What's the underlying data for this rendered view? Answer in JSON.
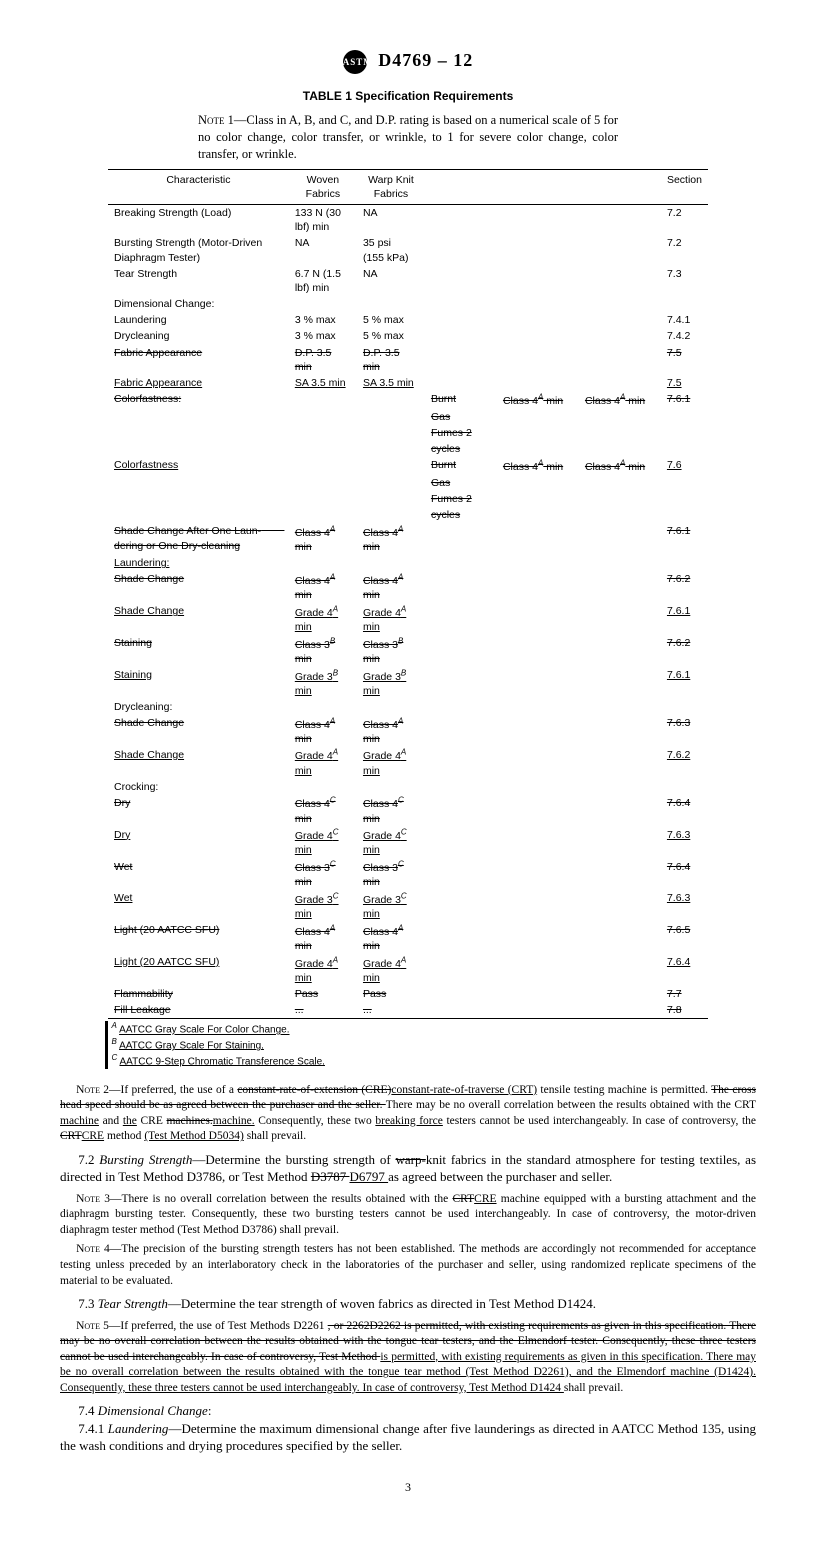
{
  "header": {
    "std_no": "D4769 – 12"
  },
  "table": {
    "title": "TABLE 1  Specification Requirements",
    "note_label": "Note",
    "note_num": "1",
    "note_text": "—Class in A, B, and C, and D.P. rating is based on a numerical scale of 5 for no color change, color transfer, or wrinkle, to 1 for severe color change, color transfer, or wrinkle.",
    "headers": {
      "c1": "Characteristic",
      "c2": "Woven Fabrics",
      "c3": "Warp Knit Fabrics",
      "c4": "Section"
    },
    "rows": [
      {
        "c": "Breaking Strength (Load)",
        "w": "133 N (30 lbf) min",
        "k": "NA",
        "s": "7.2"
      },
      {
        "c": "Bursting Strength (Motor-Driven Diaphragm Tester)",
        "w": "NA",
        "k": "35 psi\n(155 kPa)",
        "s": "7.2"
      },
      {
        "c": "Tear Strength",
        "w": "6.7 N (1.5 lbf) min",
        "k": "NA",
        "s": "7.3"
      },
      {
        "c": "Dimensional Change:"
      },
      {
        "c": "Laundering",
        "ind": 1,
        "w": "3 % max",
        "k": "5 % max",
        "s": "7.4.1"
      },
      {
        "c": "Drycleaning",
        "ind": 1,
        "w": "3 % max",
        "k": "5 % max",
        "s": "7.4.2"
      },
      {
        "c": "Fabric Appearance",
        "cs": true,
        "w": "D.P. 3.5 min",
        "ws": true,
        "k": "D.P. 3.5 min",
        "ks": true,
        "s": "7.5",
        "ss": true
      },
      {
        "c": "Fabric Appearance",
        "cu": true,
        "w": "SA 3.5 min",
        "wu": true,
        "k": "SA 3.5 min",
        "ku": true,
        "s": "7.5",
        "su": true
      },
      {
        "c": "Colorfastness:",
        "cs": true,
        "extra1": "Burnt",
        "extra1s": true,
        "extra2": "Class 4",
        "extra2s": true,
        "extra2sup": "A",
        "extra2tail": " min",
        "extra3": "Class 4",
        "extra3s": true,
        "extra3sup": "A",
        "extra3tail": " min",
        "s": "7.6.1",
        "ss": true
      },
      {
        "extra1": "Gas",
        "extra1s": true
      },
      {
        "extra1": "Fumes 2",
        "extra1s": true
      },
      {
        "extra1": "cycles",
        "extra1s": true
      },
      {
        "c": "Colorfastness",
        "cu": true,
        "ind": 1,
        "extra1": "Burnt",
        "extra1s": true,
        "extra2": "Class 4",
        "extra2s": true,
        "extra2sup": "A",
        "extra2tail": " min",
        "extra3": "Class 4",
        "extra3s": true,
        "extra3sup": "A",
        "extra3tail": " min",
        "s": "7.6",
        "su": true
      },
      {
        "extra1": "Gas",
        "extra1s": true
      },
      {
        "extra1": "Fumes 2",
        "extra1s": true
      },
      {
        "extra1": "cycles",
        "extra1s": true
      },
      {
        "c": "Shade Change After One Laun-        dering or One Dry-cleaning",
        "cs": true,
        "ind": 1,
        "w": "Class 4",
        "ws": true,
        "wsup": "A",
        "wtail": " min",
        "k": "Class 4",
        "ks": true,
        "ksup": "A",
        "ktail": " min",
        "s": "7.6.1",
        "ss": true
      },
      {
        "c": "Laundering:",
        "cu": true,
        "ind": 1
      },
      {
        "c": "Shade Change",
        "cs": true,
        "ind": 2,
        "w": "Class 4",
        "ws": true,
        "wsup": "A",
        "wtail": " min",
        "k": "Class 4",
        "ks": true,
        "ksup": "A",
        "ktail": " min",
        "s": "7.6.2",
        "ss": true
      },
      {
        "c": "Shade Change",
        "cu": true,
        "ind": 2,
        "w": "Grade 4",
        "wu": true,
        "wsup": "A",
        "wtail": " min",
        "k": "Grade 4",
        "ku": true,
        "ksup": "A",
        "ktail": " min",
        "s": "7.6.1",
        "su": true
      },
      {
        "c": "Staining",
        "cs": true,
        "ind": 2,
        "w": "Class 3",
        "ws": true,
        "wsup": "B",
        "wtail": " min",
        "k": "Class 3",
        "ks": true,
        "ksup": "B",
        "ktail": " min",
        "s": "7.6.2",
        "ss": true
      },
      {
        "c": "Staining",
        "cu": true,
        "ind": 2,
        "w": "Grade 3",
        "wu": true,
        "wsup": "B",
        "wtail": " min",
        "k": "Grade 3",
        "ku": true,
        "ksup": "B",
        "ktail": " min",
        "s": "7.6.1",
        "su": true
      },
      {
        "c": "Drycleaning:",
        "ind": 1
      },
      {
        "c": "Shade Change",
        "cs": true,
        "ind": 2,
        "w": "Class 4",
        "ws": true,
        "wsup": "A",
        "wtail": " min",
        "k": "Class 4",
        "ks": true,
        "ksup": "A",
        "ktail": " min",
        "s": "7.6.3",
        "ss": true
      },
      {
        "c": "Shade Change",
        "cu": true,
        "ind": 2,
        "w": "Grade 4",
        "wu": true,
        "wsup": "A",
        "wtail": " min",
        "k": "Grade 4",
        "ku": true,
        "ksup": "A",
        "ktail": " min",
        "s": "7.6.2",
        "su": true
      },
      {
        "c": "Crocking:",
        "ind": 1
      },
      {
        "c": "Dry",
        "cs": true,
        "ind": 2,
        "w": "Class 4",
        "ws": true,
        "wsup": "C",
        "wtail": " min",
        "k": "Class 4",
        "ks": true,
        "ksup": "C",
        "ktail": " min",
        "s": "7.6.4",
        "ss": true
      },
      {
        "c": "Dry",
        "cu": true,
        "ind": 2,
        "w": "Grade 4",
        "wu": true,
        "wsup": "C",
        "wtail": " min",
        "k": "Grade 4",
        "ku": true,
        "ksup": "C",
        "ktail": " min",
        "s": "7.6.3",
        "su": true
      },
      {
        "c": "Wet",
        "cs": true,
        "ind": 2,
        "w": "Class 3",
        "ws": true,
        "wsup": "C",
        "wtail": " min",
        "k": "Class 3",
        "ks": true,
        "ksup": "C",
        "ktail": " min",
        "s": "7.6.4",
        "ss": true
      },
      {
        "c": "Wet",
        "cu": true,
        "ind": 2,
        "w": "Grade 3",
        "wu": true,
        "wsup": "C",
        "wtail": " min",
        "k": "Grade 3",
        "ku": true,
        "ksup": "C",
        "ktail": " min",
        "s": "7.6.3",
        "su": true
      },
      {
        "c": "Light (20 AATCC SFU)",
        "cs": true,
        "ind": 1,
        "w": "Class 4",
        "ws": true,
        "wsup": "A",
        "wtail": " min",
        "k": "Class 4",
        "ks": true,
        "ksup": "A",
        "ktail": " min",
        "s": "7.6.5",
        "ss": true
      },
      {
        "c": "Light (20 AATCC SFU)",
        "cu": true,
        "ind": 1,
        "w": "Grade 4",
        "wu": true,
        "wsup": "A",
        "wtail": " min",
        "k": "Grade 4",
        "ku": true,
        "ksup": "A",
        "ktail": " min",
        "s": "7.6.4",
        "su": true
      },
      {
        "c": "Flammability",
        "cs": true,
        "w": "Pass",
        "ws": true,
        "k": "Pass",
        "ks": true,
        "s": "7.7",
        "ss": true
      },
      {
        "c": "Fill Leakage",
        "cs": true,
        "w": "...",
        "ws": true,
        "k": "...",
        "ks": true,
        "s": "7.8",
        "ss": true
      }
    ],
    "footnotes": {
      "a": "AATCC Gray Scale For Color Change.",
      "b": "AATCC Gray Scale For Staining.",
      "c": "AATCC 9-Step Chromatic Transference Scale."
    }
  },
  "paras": {
    "note2_label": "Note",
    "note2_num": "2",
    "note2_a": "—If preferred, the use of a ",
    "note2_b": "constant-rate-of-extension (CRE)",
    "note2_c": "constant-rate-of-traverse (CRT)",
    "note2_d": " tensile testing machine is permitted. ",
    "note2_e": "The cross head speed should be as agreed between the purchaser and the seller. ",
    "note2_f": "There may be no overall correlation between the results obtained with the CRT ",
    "note2_g": "machine",
    "note2_h": " and ",
    "note2_i": "the",
    "note2_j": " CRE ",
    "note2_k": "machines.",
    "note2_l": "machine.",
    "note2_m": " Consequently, these two ",
    "note2_n": "breaking force",
    "note2_o": " testers cannot be used interchangeably. In case of controversy, the ",
    "note2_p": "CRT",
    "note2_q": "CRE",
    "note2_r": " method ",
    "note2_s": "(Test Method D5034)",
    "note2_t": " shall prevail.",
    "p72_a": "7.2 ",
    "p72_b": "Bursting Strength",
    "p72_c": "—Determine the bursting strength of ",
    "p72_d": "warp-",
    "p72_e": "knit fabrics in the standard atmosphere for testing textiles, as directed in Test Method D3786, or Test Method ",
    "p72_f": "D3787 ",
    "p72_g": "D6797 ",
    "p72_h": "as agreed between the purchaser and seller.",
    "note3_label": "Note",
    "note3_num": "3",
    "note3_a": "—There is no overall correlation between the results obtained with the ",
    "note3_b": "CRT",
    "note3_c": "CRE",
    "note3_d": " machine equipped with a bursting attachment and the diaphragm bursting tester. Consequently, these two bursting testers cannot be used interchangeably. In case of controversy, the motor-driven diaphragm tester method (Test Method D3786) shall prevail.",
    "note4_label": "Note",
    "note4_num": "4",
    "note4_a": "—The precision of the bursting strength testers has not been established. The methods are accordingly not recommended for acceptance testing unless preceded by an interlaboratory check in the laboratories of the purchaser and seller, using randomized replicate specimens of the material to be evaluated.",
    "p73_a": "7.3 ",
    "p73_b": "Tear Strength",
    "p73_c": "—Determine the tear strength of woven fabrics as directed in Test Method D1424.",
    "note5_label": "Note",
    "note5_num": "5",
    "note5_a": "—If preferred, the use of Test Methods D2261 ",
    "note5_b": ", or 2262D2262 is permitted, with existing requirements as given in this specification. There may be no overall correlation between the results obtained with the tongue tear testers, and the Elmendorf tester. Consequently, these three testers cannot be used interchangeably. In case of controversy, Test Method ",
    "note5_c": "is permitted, with existing requirements as given in this specification. There may be no overall correlation between the results obtained with the tongue tear method (Test Method D2261), and the Elmendorf machine (D1424). Consequently, these three testers cannot be used interchangeably. In case of controversy, Test Method D1424 ",
    "note5_d": "shall prevail.",
    "p74_a": "7.4 ",
    "p74_b": "Dimensional Change",
    "p74_c": ":",
    "p741_a": "7.4.1 ",
    "p741_b": "Laundering",
    "p741_c": "—Determine the maximum dimensional change after five launderings as directed in AATCC Method 135, using the wash conditions and drying procedures specified by the seller."
  },
  "page_num": "3"
}
